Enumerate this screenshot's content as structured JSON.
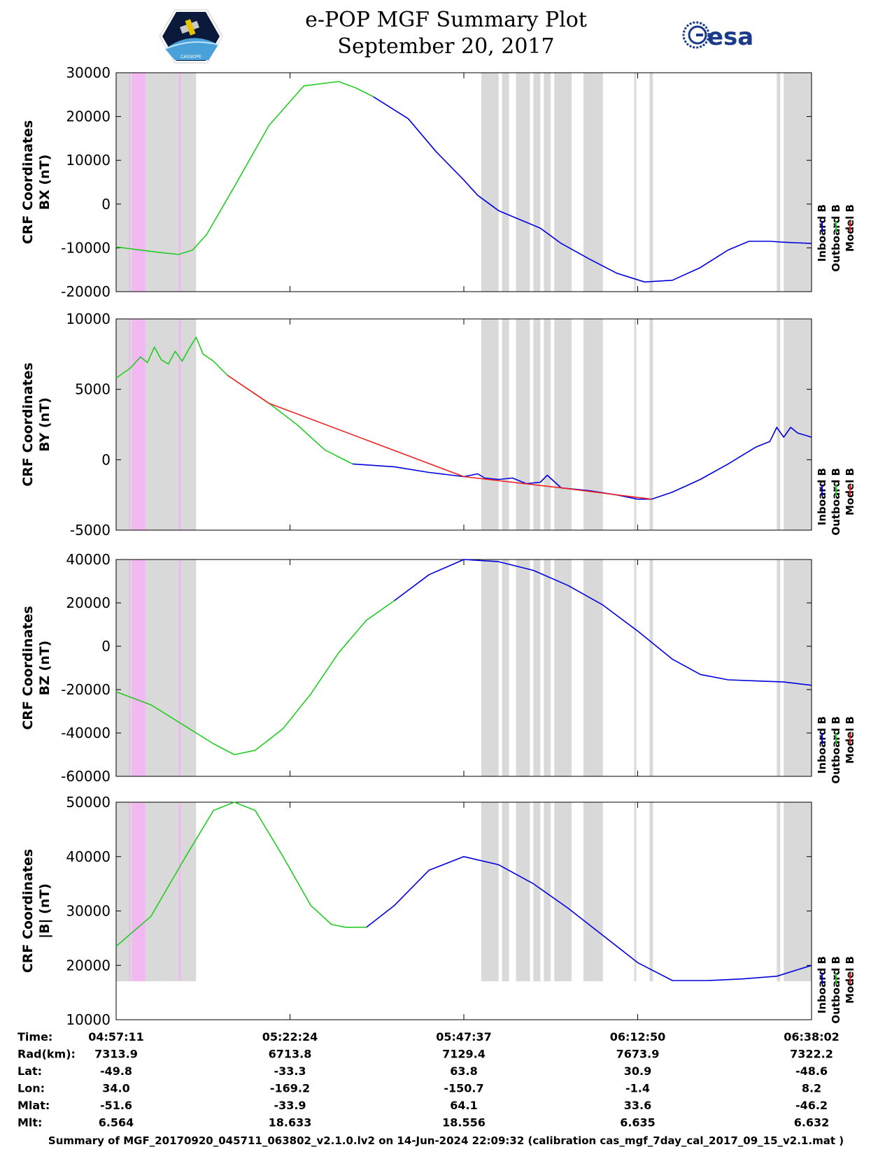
{
  "header": {
    "title": "e-POP MGF Summary Plot",
    "date": "September 20, 2017",
    "logo_left_text": "CASSIOPE",
    "logo_right_text": "esa"
  },
  "colors": {
    "inboard": "#0000dd",
    "outboard": "#22cc22",
    "model": "#ee2222",
    "shade": "#d9d9d9",
    "pink": "#f2b8f2"
  },
  "chart_data": [
    {
      "type": "line",
      "ylabel_line1": "CRF Coordinates",
      "ylabel_line2": "BX (nT)",
      "ylim": [
        -20000,
        30000
      ],
      "yticks": [
        30000,
        20000,
        10000,
        0,
        -10000,
        -20000
      ],
      "ytick_labels": [
        "30000",
        "20000",
        "10000",
        "0",
        "-10000",
        "-20000"
      ],
      "series": [
        {
          "name": "Outboard B",
          "x": [
            0,
            0.06,
            0.09,
            0.11,
            0.13,
            0.17,
            0.22,
            0.27,
            0.32,
            0.345,
            0.37
          ],
          "y": [
            -9800,
            -11000,
            -11500,
            -10500,
            -7000,
            4000,
            18000,
            27000,
            28000,
            26500,
            24500
          ]
        },
        {
          "name": "Inboard B",
          "x": [
            0.37,
            0.42,
            0.46,
            0.5,
            0.52,
            0.55,
            0.58,
            0.61,
            0.64,
            0.68,
            0.72,
            0.76,
            0.8,
            0.84,
            0.88,
            0.91,
            0.94,
            0.96,
            1.0
          ],
          "y": [
            24500,
            19500,
            12000,
            5500,
            2000,
            -1500,
            -3500,
            -5500,
            -9000,
            -12500,
            -15800,
            -17800,
            -17400,
            -14500,
            -10500,
            -8500,
            -8500,
            -8700,
            -9000
          ]
        }
      ]
    },
    {
      "type": "line",
      "ylabel_line1": "CRF Coordinates",
      "ylabel_line2": "BY (nT)",
      "ylim": [
        -5000,
        10000
      ],
      "yticks": [
        10000,
        5000,
        0,
        -5000
      ],
      "ytick_labels": [
        "10000",
        "5000",
        "0",
        "-5000"
      ],
      "series": [
        {
          "name": "Outboard B",
          "x": [
            0,
            0.02,
            0.035,
            0.045,
            0.055,
            0.065,
            0.075,
            0.085,
            0.095,
            0.105,
            0.115,
            0.125,
            0.14,
            0.16,
            0.19,
            0.22,
            0.26,
            0.3,
            0.34
          ],
          "y": [
            5800,
            6500,
            7300,
            6900,
            8000,
            7100,
            6800,
            7700,
            7000,
            7900,
            8700,
            7500,
            7000,
            6000,
            5000,
            4000,
            2500,
            700,
            -300
          ]
        },
        {
          "name": "Inboard B",
          "x": [
            0.34,
            0.4,
            0.45,
            0.5,
            0.52,
            0.53,
            0.55,
            0.57,
            0.59,
            0.61,
            0.62,
            0.64,
            0.68,
            0.72,
            0.75,
            0.77,
            0.8,
            0.84,
            0.88,
            0.92,
            0.94,
            0.95,
            0.96,
            0.97,
            0.98,
            1.0
          ],
          "y": [
            -300,
            -500,
            -900,
            -1200,
            -1000,
            -1300,
            -1400,
            -1300,
            -1700,
            -1600,
            -1100,
            -2000,
            -2200,
            -2500,
            -2800,
            -2800,
            -2300,
            -1400,
            -300,
            900,
            1300,
            2300,
            1600,
            2300,
            1900,
            1600
          ]
        },
        {
          "name": "Model B",
          "x": [
            0.16,
            0.22,
            0.5,
            0.64,
            0.77
          ],
          "y": [
            6000,
            4000,
            -1200,
            -2000,
            -2800
          ]
        }
      ]
    },
    {
      "type": "line",
      "ylabel_line1": "CRF Coordinates",
      "ylabel_line2": "BZ (nT)",
      "ylim": [
        -60000,
        40000
      ],
      "yticks": [
        40000,
        20000,
        0,
        -20000,
        -40000,
        -60000
      ],
      "ytick_labels": [
        "40000",
        "20000",
        "0",
        "-20000",
        "-40000",
        "-60000"
      ],
      "series": [
        {
          "name": "Outboard B",
          "x": [
            0,
            0.05,
            0.1,
            0.14,
            0.17,
            0.2,
            0.24,
            0.28,
            0.32,
            0.36,
            0.4
          ],
          "y": [
            -21000,
            -27000,
            -37000,
            -45000,
            -50000,
            -48000,
            -38000,
            -22000,
            -3000,
            12000,
            21000
          ]
        },
        {
          "name": "Inboard B",
          "x": [
            0.4,
            0.45,
            0.5,
            0.55,
            0.6,
            0.65,
            0.7,
            0.75,
            0.8,
            0.84,
            0.88,
            0.92,
            0.96,
            1.0
          ],
          "y": [
            21000,
            33000,
            40000,
            39000,
            35000,
            28000,
            19000,
            7000,
            -6000,
            -13000,
            -15500,
            -16000,
            -16500,
            -18000
          ]
        }
      ]
    },
    {
      "type": "line",
      "ylabel_line1": "CRF Coordinates",
      "ylabel_line2": "|B| (nT)",
      "ylim": [
        10000,
        50000
      ],
      "yticks": [
        50000,
        40000,
        30000,
        20000,
        10000
      ],
      "ytick_labels": [
        "50000",
        "40000",
        "30000",
        "20000",
        "10000"
      ],
      "series": [
        {
          "name": "Outboard B",
          "x": [
            0,
            0.05,
            0.1,
            0.14,
            0.17,
            0.2,
            0.24,
            0.28,
            0.31,
            0.33,
            0.36
          ],
          "y": [
            23500,
            29000,
            40000,
            48500,
            50000,
            48500,
            40000,
            31000,
            27500,
            27000,
            27000
          ]
        },
        {
          "name": "Inboard B",
          "x": [
            0.36,
            0.4,
            0.45,
            0.5,
            0.55,
            0.6,
            0.65,
            0.7,
            0.75,
            0.8,
            0.85,
            0.9,
            0.95,
            1.0
          ],
          "y": [
            27000,
            31000,
            37500,
            40000,
            38500,
            35000,
            30500,
            25500,
            20500,
            17200,
            17200,
            17500,
            18000,
            20000
          ]
        }
      ]
    }
  ],
  "legend": {
    "inboard": "Inboard B",
    "outboard": "Outboard B",
    "model": "Model B"
  },
  "shading": {
    "gray_bands": [
      [
        0,
        0.115
      ],
      [
        0.525,
        0.55
      ],
      [
        0.555,
        0.565
      ],
      [
        0.575,
        0.595
      ],
      [
        0.6,
        0.61
      ],
      [
        0.615,
        0.625
      ],
      [
        0.63,
        0.655
      ],
      [
        0.672,
        0.7
      ],
      [
        0.745,
        0.748
      ],
      [
        0.767,
        0.772
      ],
      [
        0.95,
        0.955
      ],
      [
        0.96,
        1.0
      ]
    ],
    "pink_bands": [
      [
        0.018,
        0.02
      ],
      [
        0.023,
        0.042
      ],
      [
        0.09,
        0.093
      ]
    ]
  },
  "time_table": {
    "row_labels": [
      "Time:",
      "Rad(km):",
      "Lat:",
      "Lon:",
      "Mlat:",
      "Mlt:"
    ],
    "columns": [
      [
        "04:57:11",
        "7313.9",
        "-49.8",
        "34.0",
        "-51.6",
        "6.564"
      ],
      [
        "05:22:24",
        "6713.8",
        "-33.3",
        "-169.2",
        "-33.9",
        "18.633"
      ],
      [
        "05:47:37",
        "7129.4",
        "63.8",
        "-150.7",
        "64.1",
        "18.556"
      ],
      [
        "06:12:50",
        "7673.9",
        "30.9",
        "-1.4",
        "33.6",
        "6.635"
      ],
      [
        "06:38:02",
        "7322.2",
        "-48.6",
        "8.2",
        "-46.2",
        "6.632"
      ]
    ]
  },
  "footer": {
    "text": "Summary of MGF_20170920_045711_063802_v2.1.0.lv2 on 14-Jun-2024 22:09:32 (calibration cas_mgf_7day_cal_2017_09_15_v2.1.mat )"
  }
}
